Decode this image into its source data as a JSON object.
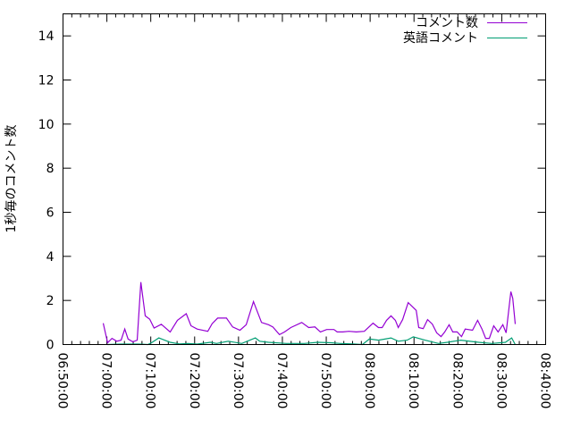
{
  "chart_data": {
    "type": "line",
    "title": "",
    "xlabel": "",
    "ylabel": "1秒毎のコメント数",
    "xlim": [
      "06:50:00",
      "08:40:00"
    ],
    "ylim": [
      0,
      15
    ],
    "x_ticks": [
      "06:50:00",
      "07:00:00",
      "07:10:00",
      "07:20:00",
      "07:30:00",
      "07:40:00",
      "07:50:00",
      "08:00:00",
      "08:10:00",
      "08:20:00",
      "08:30:00",
      "08:40:00"
    ],
    "y_ticks": [
      0,
      2,
      4,
      6,
      8,
      10,
      12,
      14
    ],
    "grid": false,
    "legend_position": "top-right",
    "series": [
      {
        "name": "コメント数",
        "color": "#9400d3",
        "points": [
          [
            "06:59:10",
            0.97
          ],
          [
            "07:00:10",
            0.08
          ],
          [
            "07:01:10",
            0.28
          ],
          [
            "07:02:15",
            0.15
          ],
          [
            "07:03:15",
            0.2
          ],
          [
            "07:04:05",
            0.7
          ],
          [
            "07:04:50",
            0.25
          ],
          [
            "07:05:55",
            0.12
          ],
          [
            "07:06:55",
            0.2
          ],
          [
            "07:07:45",
            2.83
          ],
          [
            "07:08:45",
            1.3
          ],
          [
            "07:09:45",
            1.15
          ],
          [
            "07:10:45",
            0.75
          ],
          [
            "07:12:25",
            0.92
          ],
          [
            "07:14:25",
            0.57
          ],
          [
            "07:16:05",
            1.1
          ],
          [
            "07:18:05",
            1.4
          ],
          [
            "07:19:10",
            0.85
          ],
          [
            "07:20:35",
            0.7
          ],
          [
            "07:23:00",
            0.6
          ],
          [
            "07:24:00",
            0.95
          ],
          [
            "07:25:15",
            1.2
          ],
          [
            "07:27:15",
            1.2
          ],
          [
            "07:28:40",
            0.8
          ],
          [
            "07:30:20",
            0.65
          ],
          [
            "07:31:45",
            0.9
          ],
          [
            "07:33:25",
            1.95
          ],
          [
            "07:35:15",
            1.0
          ],
          [
            "07:36:50",
            0.9
          ],
          [
            "07:37:50",
            0.8
          ],
          [
            "07:39:20",
            0.45
          ],
          [
            "07:40:30",
            0.57
          ],
          [
            "07:41:55",
            0.77
          ],
          [
            "07:44:25",
            1.0
          ],
          [
            "07:46:00",
            0.77
          ],
          [
            "07:47:25",
            0.8
          ],
          [
            "07:48:40",
            0.57
          ],
          [
            "07:50:05",
            0.68
          ],
          [
            "07:51:45",
            0.68
          ],
          [
            "07:52:30",
            0.57
          ],
          [
            "07:53:45",
            0.57
          ],
          [
            "07:55:10",
            0.6
          ],
          [
            "07:56:50",
            0.57
          ],
          [
            "07:58:40",
            0.6
          ],
          [
            "08:00:40",
            0.97
          ],
          [
            "08:01:55",
            0.77
          ],
          [
            "08:02:45",
            0.77
          ],
          [
            "08:03:45",
            1.1
          ],
          [
            "08:04:45",
            1.3
          ],
          [
            "08:05:45",
            1.1
          ],
          [
            "08:06:25",
            0.77
          ],
          [
            "08:07:25",
            1.13
          ],
          [
            "08:08:40",
            1.9
          ],
          [
            "08:10:30",
            1.55
          ],
          [
            "08:11:05",
            0.77
          ],
          [
            "08:12:05",
            0.72
          ],
          [
            "08:13:05",
            1.13
          ],
          [
            "08:14:10",
            0.93
          ],
          [
            "08:15:10",
            0.53
          ],
          [
            "08:16:10",
            0.36
          ],
          [
            "08:17:00",
            0.57
          ],
          [
            "08:18:00",
            0.9
          ],
          [
            "08:18:50",
            0.57
          ],
          [
            "08:19:50",
            0.57
          ],
          [
            "08:20:50",
            0.36
          ],
          [
            "08:21:40",
            0.7
          ],
          [
            "08:23:20",
            0.65
          ],
          [
            "08:24:30",
            1.1
          ],
          [
            "08:25:30",
            0.7
          ],
          [
            "08:26:20",
            0.28
          ],
          [
            "08:27:10",
            0.28
          ],
          [
            "08:28:10",
            0.85
          ],
          [
            "08:29:10",
            0.57
          ],
          [
            "08:30:15",
            0.9
          ],
          [
            "08:31:00",
            0.53
          ],
          [
            "08:32:05",
            2.4
          ],
          [
            "08:32:30",
            2.1
          ],
          [
            "08:33:05",
            0.93
          ]
        ]
      },
      {
        "name": "英語コメント",
        "color": "#009e73",
        "points": [
          [
            "07:00:10",
            0
          ],
          [
            "07:03:15",
            0.02
          ],
          [
            "07:07:20",
            0.02
          ],
          [
            "07:09:20",
            0
          ],
          [
            "07:10:20",
            0.1
          ],
          [
            "07:11:50",
            0.3
          ],
          [
            "07:14:25",
            0.1
          ],
          [
            "07:16:30",
            0.03
          ],
          [
            "07:18:30",
            0.05
          ],
          [
            "07:20:35",
            0.02
          ],
          [
            "07:23:35",
            0.1
          ],
          [
            "07:25:00",
            0.05
          ],
          [
            "07:27:40",
            0.15
          ],
          [
            "07:30:45",
            0.05
          ],
          [
            "07:33:50",
            0.3
          ],
          [
            "07:34:50",
            0.15
          ],
          [
            "07:36:50",
            0.1
          ],
          [
            "07:40:55",
            0.05
          ],
          [
            "07:45:00",
            0.05
          ],
          [
            "07:48:05",
            0.1
          ],
          [
            "07:51:05",
            0.08
          ],
          [
            "07:53:10",
            0.05
          ],
          [
            "07:56:10",
            0.03
          ],
          [
            "07:58:15",
            0
          ],
          [
            "07:59:50",
            0.25
          ],
          [
            "08:01:55",
            0.2
          ],
          [
            "08:04:45",
            0.3
          ],
          [
            "08:06:25",
            0.15
          ],
          [
            "08:08:25",
            0.2
          ],
          [
            "08:09:50",
            0.35
          ],
          [
            "08:12:30",
            0.2
          ],
          [
            "08:15:35",
            0.05
          ],
          [
            "08:17:35",
            0.1
          ],
          [
            "08:20:40",
            0.2
          ],
          [
            "08:24:45",
            0.1
          ],
          [
            "08:27:45",
            0.05
          ],
          [
            "08:30:50",
            0.1
          ],
          [
            "08:32:15",
            0.3
          ],
          [
            "08:33:05",
            0
          ]
        ]
      }
    ]
  }
}
